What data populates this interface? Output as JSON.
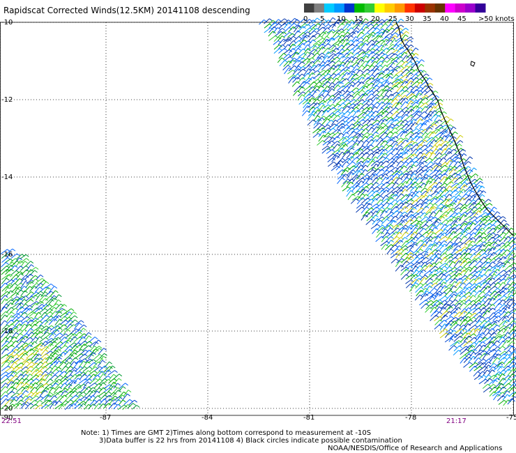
{
  "title": "Rapidscat Corrected Winds(12.5KM) 20141108 descending",
  "colorbar": {
    "labels": [
      "0",
      "5",
      "10",
      "15",
      "20",
      "25",
      "30",
      "35",
      "40",
      "45",
      ">50 knots"
    ],
    "colors": [
      "#404040",
      "#808080",
      "#00ccff",
      "#0099ff",
      "#0033cc",
      "#00bb00",
      "#33cc33",
      "#ffff00",
      "#ffcc00",
      "#ff9900",
      "#ff3300",
      "#cc0000",
      "#993300",
      "#663300",
      "#ff00ff",
      "#cc00cc",
      "#9900cc",
      "#330099"
    ]
  },
  "axes": {
    "lat_labels": [
      "-10",
      "-12",
      "-14",
      "-16",
      "-18",
      "-20"
    ],
    "lon_labels": [
      "-90",
      "-87",
      "-84",
      "-81",
      "-78",
      "-75"
    ]
  },
  "times": {
    "left": "22:51",
    "right": "21:17"
  },
  "notes": {
    "line1": "Note: 1) Times are GMT 2)Times along bottom correspond to measurement at -10S",
    "line2": "3)Data buffer is 22 hrs from 20141108 4) Black circles indicate possible contamination",
    "line3": "NOAA/NESDIS/Office of Research and Applications"
  }
}
